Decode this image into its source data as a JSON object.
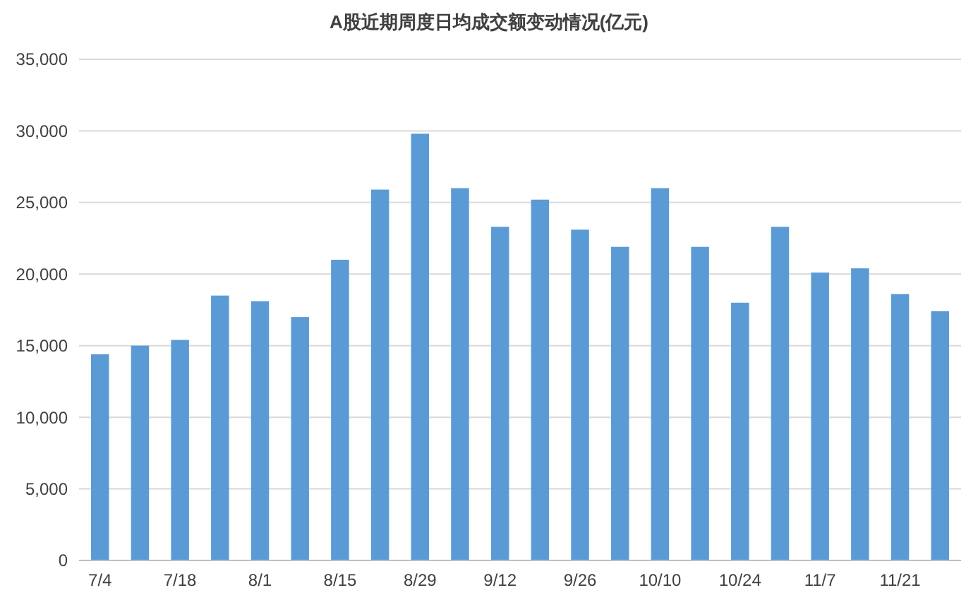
{
  "chart_data": {
    "type": "bar",
    "title": "A股近期周度日均成交额变动情况(亿元)",
    "categories": [
      "7/4",
      null,
      "7/18",
      null,
      "8/1",
      null,
      "8/15",
      null,
      "8/29",
      null,
      "9/12",
      null,
      "9/26",
      null,
      "10/10",
      null,
      "10/24",
      null,
      "11/7",
      null,
      "11/21",
      null
    ],
    "values": [
      14400,
      15000,
      15400,
      18500,
      18100,
      17000,
      21000,
      25900,
      29800,
      26000,
      23300,
      25200,
      23100,
      21900,
      26000,
      21900,
      18000,
      23300,
      20100,
      20400,
      18600,
      17400
    ],
    "color": "#5b9bd5",
    "ylim": [
      0,
      35000
    ],
    "yticks": [
      {
        "value": 0,
        "label": "0"
      },
      {
        "value": 5000,
        "label": "5,000"
      },
      {
        "value": 10000,
        "label": "10,000"
      },
      {
        "value": 15000,
        "label": "15,000"
      },
      {
        "value": 20000,
        "label": "20,000"
      },
      {
        "value": 25000,
        "label": "25,000"
      },
      {
        "value": 30000,
        "label": "30,000"
      },
      {
        "value": 35000,
        "label": "35,000"
      }
    ],
    "grid": "y"
  }
}
